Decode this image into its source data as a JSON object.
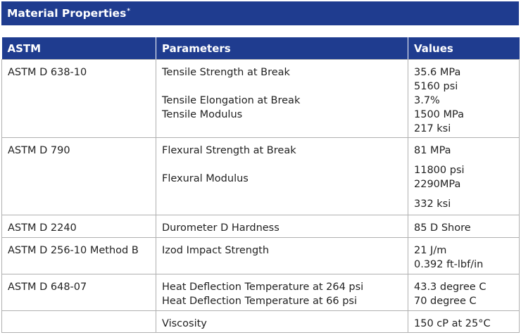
{
  "title": "Material Properties",
  "title_mark": "*",
  "headers": [
    "ASTM",
    "Parameters",
    "Values"
  ],
  "rows": [
    {
      "astm": "ASTM D 638-10",
      "params": [
        "Tensile Strength at Break",
        "Tensile Elongation at Break",
        "Tensile Modulus"
      ],
      "values": [
        "35.6 MPa",
        "5160 psi",
        "3.7%",
        "1500 MPa",
        "217 ksi"
      ]
    },
    {
      "astm": "ASTM D 790",
      "params": [
        "Flexural Strength at Break",
        "Flexural Modulus"
      ],
      "values": [
        "81 MPa",
        "11800 psi",
        "2290MPa",
        "332 ksi"
      ]
    },
    {
      "astm": "ASTM D 2240",
      "params": [
        "Durometer D Hardness"
      ],
      "values": [
        "85 D Shore"
      ]
    },
    {
      "astm": "ASTM D 256-10 Method B",
      "params": [
        "Izod Impact Strength"
      ],
      "values": [
        "21 J/m",
        "0.392 ft-lbf/in"
      ]
    },
    {
      "astm": "ASTM D 648-07",
      "params": [
        "Heat Deflection Temperature at 264 psi",
        "Heat Deflection Temperature at 66 psi"
      ],
      "values": [
        "43.3 degree C",
        "70 degree C"
      ]
    },
    {
      "astm": "",
      "params": [
        "Viscosity"
      ],
      "values": [
        "150 cP at 25°C"
      ]
    }
  ]
}
